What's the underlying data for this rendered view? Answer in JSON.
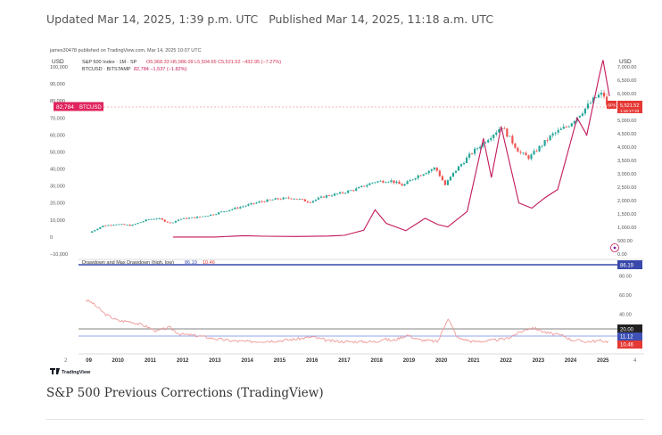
{
  "meta": {
    "updated": "Updated Mar 14, 2025, 1:39 p.m. UTC",
    "published": "Published Mar 14, 2025, 11:18 a.m. UTC"
  },
  "caption": "S&P 500 Previous Corrections (TradingView)",
  "chart": {
    "header": "james30478 published on TradingView.com, Mar 14, 2025 10:07 UTC",
    "left_unit": "USD",
    "right_unit": "USD",
    "legend_spx": "S&P 500 Index · 1M · SP",
    "legend_spx_ohlc": "O5,968.33 H5,986.09 L5,504.65 C5,521.52 −432.95 (−7.27%)",
    "legend_btc": "BTCUSD · BITSTAMP",
    "legend_btc_vals": "82,784 −1,537 (−1.82%)",
    "btc_tag": "82,784",
    "btc_tag_name": "BTCUSD",
    "spx_tag_name": "SPX",
    "spx_tag": "5,521.52",
    "spx_tag2": "1:16:17:33",
    "left_axis": [
      "100,000",
      "90,000",
      "80,000",
      "70,000",
      "60,000",
      "50,000",
      "40,000",
      "30,000",
      "20,000",
      "10,000",
      "0",
      "−10,000"
    ],
    "right_axis": [
      "7,000.00",
      "6,500.00",
      "6,000.00",
      "5,500.00",
      "5,000.00",
      "4,500.00",
      "4,000.00",
      "3,500.00",
      "3,000.00",
      "2,500.00",
      "2,000.00",
      "1,500.00",
      "1,000.00",
      "500.00",
      "0.00"
    ],
    "dd_legend_name": "Drawdown and Max Drawdown (high, low)",
    "dd_legend_v1": "86.19",
    "dd_legend_v2": "10.46",
    "dd_axis": [
      "80.00",
      "60.00",
      "40.00"
    ],
    "dd_tag_top": "86.19",
    "dd_tag_20": "20.00",
    "dd_tag_mid": "11.12",
    "dd_tag_low": "10.46",
    "x_labels": [
      "09",
      "2010",
      "2011",
      "2012",
      "2013",
      "2014",
      "2015",
      "2016",
      "2017",
      "2018",
      "2019",
      "2020",
      "2021",
      "2022",
      "2023",
      "2024",
      "2025"
    ],
    "x_edge_left": "2",
    "x_edge_right": "4",
    "logo": "TradingView"
  },
  "chart_data": [
    {
      "type": "line",
      "name": "S&P 500 Index · 1M · SP",
      "x": [
        2009.2,
        2009.6,
        2010.0,
        2010.5,
        2011.0,
        2011.3,
        2011.7,
        2012.0,
        2012.5,
        2013.0,
        2013.5,
        2014.0,
        2014.5,
        2015.0,
        2015.5,
        2016.0,
        2016.5,
        2017.0,
        2017.5,
        2018.0,
        2018.5,
        2018.9,
        2019.3,
        2019.9,
        2020.2,
        2020.5,
        2021.0,
        2021.5,
        2021.95,
        2022.5,
        2022.8,
        2023.0,
        2023.5,
        2024.0,
        2024.5,
        2024.9,
        2025.1,
        2025.2
      ],
      "values": [
        800,
        1050,
        1120,
        1070,
        1290,
        1340,
        1160,
        1310,
        1370,
        1480,
        1650,
        1800,
        1960,
        2060,
        2100,
        1950,
        2170,
        2280,
        2450,
        2700,
        2750,
        2560,
        2900,
        3230,
        2580,
        3100,
        3750,
        4300,
        4770,
        3800,
        3600,
        3850,
        4450,
        4800,
        5400,
        5900,
        6000,
        5520
      ],
      "y_range": [
        0,
        7000
      ]
    },
    {
      "type": "line",
      "name": "BTCUSD · BITSTAMP",
      "x": [
        2011.7,
        2013.0,
        2013.9,
        2014.5,
        2015.5,
        2016.5,
        2017.0,
        2017.6,
        2017.95,
        2018.3,
        2018.9,
        2019.5,
        2019.9,
        2020.2,
        2020.8,
        2021.3,
        2021.55,
        2021.85,
        2022.4,
        2022.8,
        2023.2,
        2023.6,
        2024.2,
        2024.5,
        2024.9,
        2025.0,
        2025.2
      ],
      "values": [
        0,
        0,
        800,
        500,
        300,
        600,
        1000,
        4000,
        16000,
        8000,
        3700,
        11000,
        7300,
        6000,
        15000,
        58000,
        35000,
        65000,
        20000,
        17000,
        23000,
        28000,
        70000,
        60000,
        96000,
        104000,
        82784
      ],
      "y_range": [
        -10000,
        100000
      ]
    },
    {
      "type": "line",
      "name": "Drawdown and Max Drawdown (high, low)",
      "x": [
        2009.0,
        2009.2,
        2009.6,
        2010.0,
        2010.4,
        2010.8,
        2011.2,
        2011.6,
        2011.9,
        2012.5,
        2013.0,
        2013.5,
        2014.0,
        2015.0,
        2015.6,
        2016.0,
        2016.5,
        2017.0,
        2018.0,
        2018.2,
        2018.5,
        2018.95,
        2019.3,
        2019.9,
        2020.2,
        2020.5,
        2021.0,
        2021.5,
        2022.0,
        2022.5,
        2022.8,
        2023.3,
        2023.8,
        2024.0,
        2024.5,
        2024.9,
        2025.2
      ],
      "values": [
        55,
        52,
        40,
        33,
        32,
        28,
        22,
        26,
        19,
        17,
        14,
        12,
        11,
        12,
        14,
        16,
        12,
        11,
        11,
        14,
        12,
        18,
        13,
        11,
        36,
        15,
        11,
        12,
        14,
        22,
        26,
        20,
        17,
        13,
        11,
        12,
        11
      ],
      "y_range": [
        0,
        90
      ]
    }
  ]
}
